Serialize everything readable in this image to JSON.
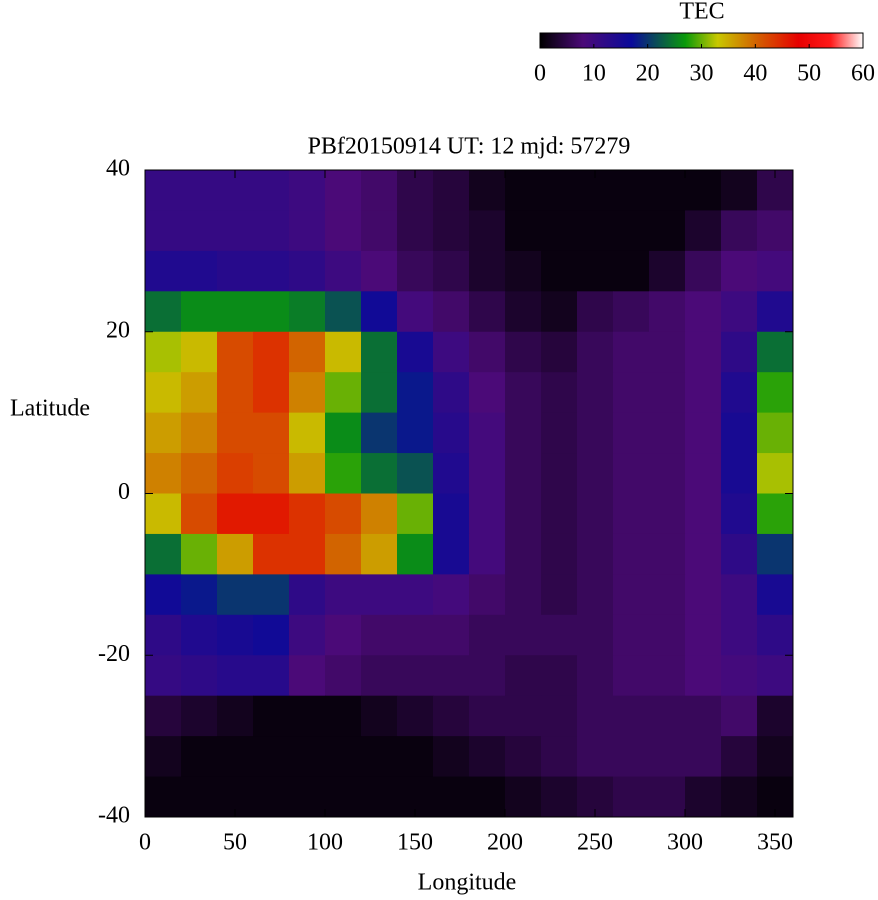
{
  "chart_data": {
    "type": "heatmap",
    "title": "PBf20150914  UT: 12  mjd: 57279",
    "xlabel": "Longitude",
    "ylabel": "Latitude",
    "colorbar_label": "TEC",
    "xlim": [
      0,
      360
    ],
    "ylim": [
      -40,
      40
    ],
    "xticks": [
      0,
      50,
      100,
      150,
      200,
      250,
      300,
      350
    ],
    "yticks": [
      -40,
      -20,
      0,
      20,
      40
    ],
    "clim": [
      0,
      60
    ],
    "cticks": [
      0,
      10,
      20,
      30,
      40,
      50,
      60
    ],
    "colorscale": [
      [
        0,
        "#000000"
      ],
      [
        8,
        "#4b0a78"
      ],
      [
        17,
        "#0a0a9a"
      ],
      [
        27,
        "#0a9a0a"
      ],
      [
        33,
        "#c8c800"
      ],
      [
        40,
        "#d26400"
      ],
      [
        48,
        "#e60000"
      ],
      [
        54,
        "#ff1a1a"
      ],
      [
        60,
        "#ffffff"
      ]
    ],
    "x_edges": [
      0,
      20,
      40,
      60,
      80,
      100,
      120,
      140,
      160,
      180,
      200,
      220,
      240,
      260,
      280,
      300,
      320,
      340,
      360
    ],
    "y_edges": [
      40,
      35,
      30,
      25,
      20,
      15,
      10,
      5,
      0,
      -5,
      -10,
      -15,
      -20,
      -25,
      -30,
      -35,
      -40
    ],
    "z": [
      [
        11,
        11,
        11,
        11,
        10,
        8,
        7,
        5,
        4,
        2,
        1,
        1,
        1,
        1,
        1,
        1,
        2,
        5
      ],
      [
        11,
        11,
        11,
        11,
        10,
        8,
        7,
        5,
        4,
        3,
        1,
        1,
        1,
        1,
        1,
        3,
        6,
        7
      ],
      [
        14,
        14,
        13,
        13,
        12,
        10,
        8,
        6,
        5,
        3,
        2,
        1,
        1,
        1,
        3,
        6,
        8,
        9
      ],
      [
        24,
        26,
        26,
        26,
        25,
        22,
        16,
        9,
        7,
        5,
        3,
        2,
        5,
        6,
        7,
        8,
        10,
        14
      ],
      [
        32,
        34,
        42,
        44,
        40,
        34,
        24,
        15,
        10,
        7,
        5,
        4,
        6,
        7,
        7,
        8,
        12,
        24
      ],
      [
        34,
        36,
        42,
        44,
        38,
        30,
        24,
        18,
        12,
        8,
        6,
        5,
        6,
        7,
        7,
        8,
        14,
        28
      ],
      [
        36,
        38,
        42,
        42,
        34,
        26,
        20,
        18,
        13,
        9,
        6,
        5,
        6,
        7,
        7,
        8,
        15,
        30
      ],
      [
        38,
        40,
        43,
        42,
        36,
        28,
        24,
        22,
        14,
        9,
        6,
        5,
        6,
        7,
        7,
        8,
        15,
        32
      ],
      [
        34,
        42,
        46,
        46,
        44,
        42,
        38,
        30,
        15,
        9,
        6,
        5,
        6,
        7,
        7,
        8,
        14,
        28
      ],
      [
        24,
        30,
        36,
        44,
        44,
        40,
        36,
        26,
        15,
        9,
        6,
        5,
        6,
        7,
        7,
        8,
        12,
        20
      ],
      [
        16,
        18,
        20,
        20,
        12,
        10,
        10,
        10,
        9,
        7,
        6,
        5,
        6,
        7,
        7,
        8,
        10,
        15
      ],
      [
        12,
        14,
        15,
        16,
        10,
        8,
        7,
        7,
        7,
        6,
        6,
        6,
        6,
        7,
        7,
        8,
        10,
        12
      ],
      [
        11,
        12,
        13,
        13,
        8,
        7,
        6,
        6,
        6,
        6,
        5,
        5,
        6,
        7,
        7,
        8,
        9,
        10
      ],
      [
        4,
        3,
        2,
        1,
        1,
        1,
        2,
        3,
        4,
        5,
        5,
        5,
        6,
        6,
        6,
        6,
        7,
        3
      ],
      [
        2,
        1,
        1,
        1,
        1,
        1,
        1,
        1,
        2,
        3,
        4,
        5,
        6,
        6,
        6,
        6,
        4,
        2
      ],
      [
        1,
        1,
        1,
        1,
        1,
        1,
        1,
        1,
        1,
        1,
        2,
        3,
        4,
        5,
        5,
        3,
        2,
        1
      ]
    ]
  }
}
